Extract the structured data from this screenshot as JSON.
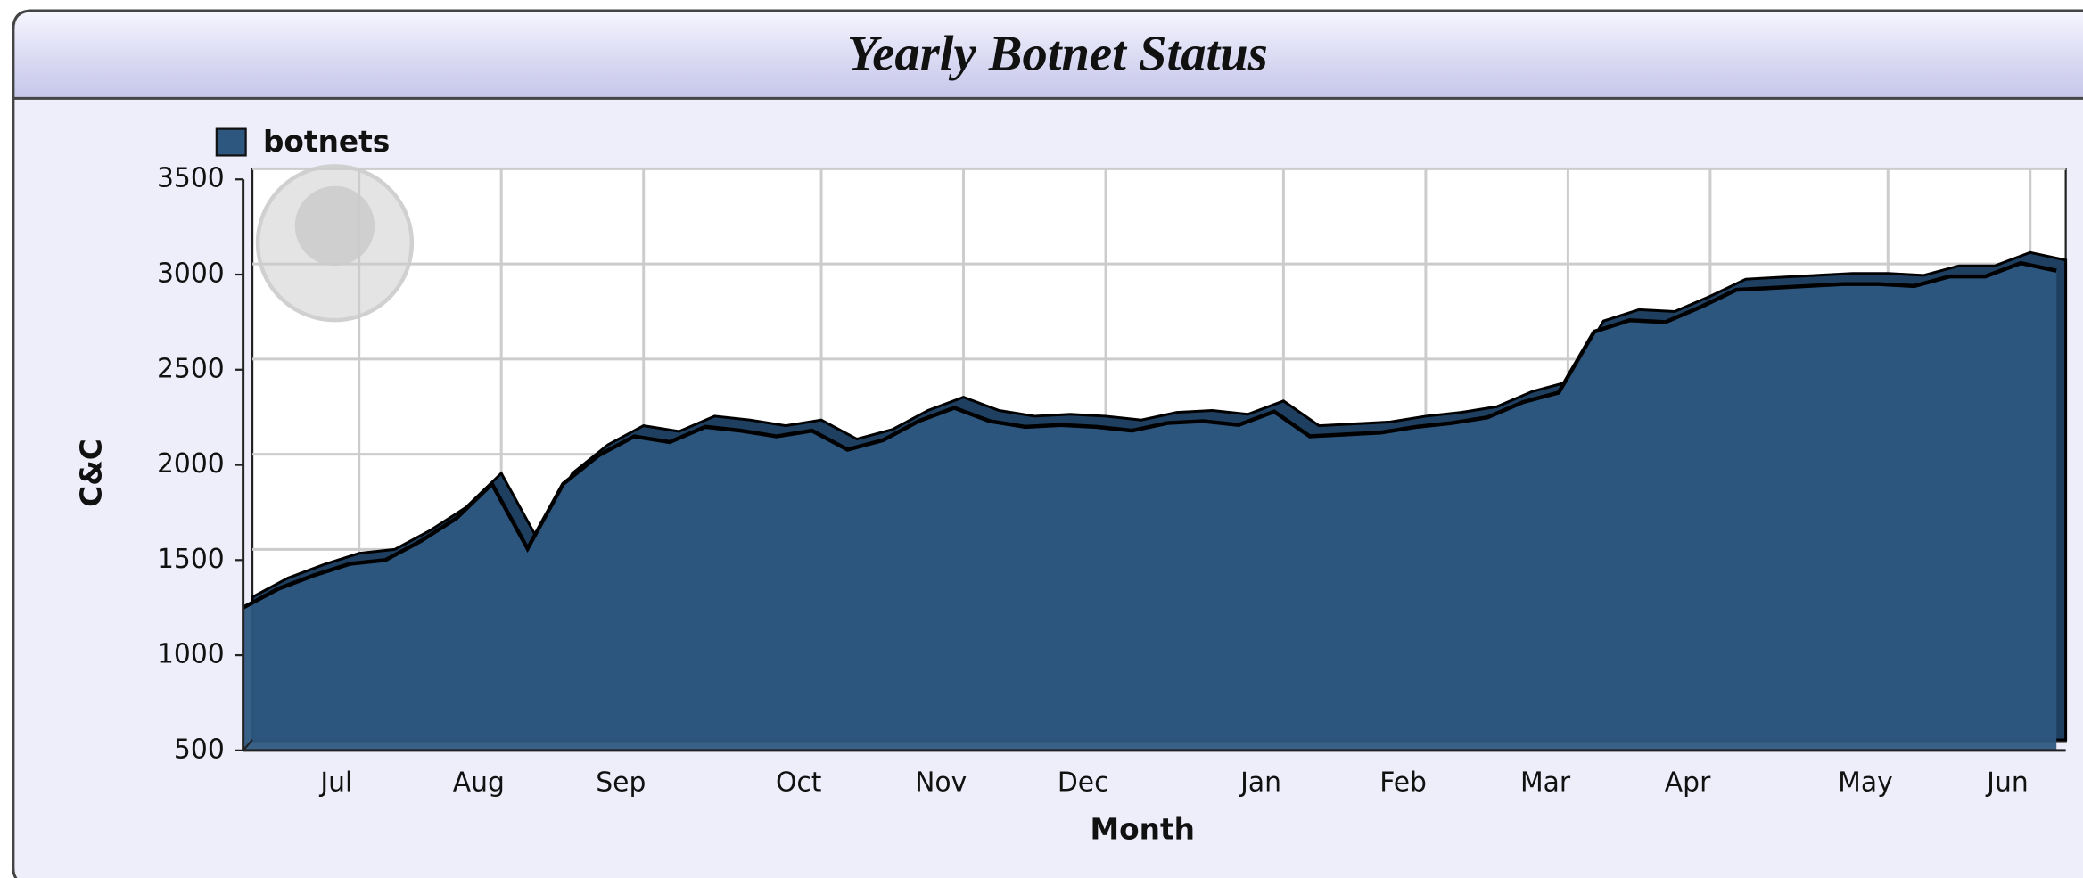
{
  "chart_data": {
    "type": "area",
    "title": "Yearly Botnet Status",
    "xlabel": "Month",
    "ylabel": "C&C",
    "categories": [
      null,
      null,
      null,
      "Jul",
      null,
      null,
      null,
      "Aug",
      null,
      null,
      null,
      "Sep",
      null,
      null,
      null,
      null,
      "Oct",
      null,
      null,
      null,
      "Nov",
      null,
      null,
      null,
      "Dec",
      null,
      null,
      null,
      null,
      "Jan",
      null,
      null,
      null,
      "Feb",
      null,
      null,
      null,
      "Mar",
      null,
      null,
      null,
      "Apr",
      null,
      null,
      null,
      null,
      "May",
      null,
      null,
      null,
      "Jun",
      null
    ],
    "series": [
      {
        "name": "botnets",
        "color": "#2e5780",
        "values": [
          1250,
          1350,
          1420,
          1480,
          1500,
          1600,
          1720,
          1900,
          1560,
          1900,
          2050,
          2150,
          2120,
          2200,
          2180,
          2150,
          2180,
          2080,
          2130,
          2230,
          2300,
          2230,
          2200,
          2210,
          2200,
          2180,
          2220,
          2230,
          2210,
          2280,
          2150,
          2160,
          2170,
          2200,
          2220,
          2250,
          2330,
          2380,
          2700,
          2760,
          2750,
          2830,
          2920,
          2930,
          2940,
          2950,
          2950,
          2940,
          2990,
          2990,
          3060,
          3020
        ]
      }
    ],
    "ylim": [
      500,
      3500
    ],
    "yticks": [
      500,
      1000,
      1500,
      2000,
      2500,
      3000,
      3500
    ],
    "grid": true,
    "legend": "top-left"
  }
}
